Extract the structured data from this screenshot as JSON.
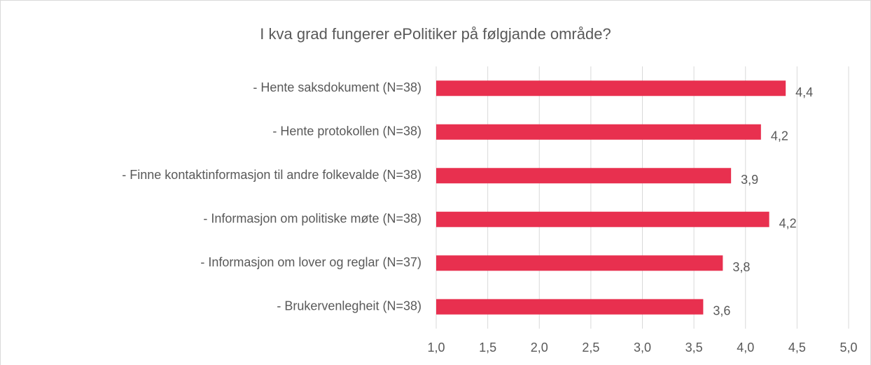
{
  "chart_data": {
    "type": "bar",
    "orientation": "horizontal",
    "title": "I kva grad fungerer ePolitiker på følgjande område?",
    "categories": [
      "- Hente saksdokument (N=38)",
      "- Hente protokollen (N=38)",
      "- Finne kontaktinformasjon til andre folkevalde (N=38)",
      "- Informasjon om politiske møte (N=38)",
      "- Informasjon om lover og reglar (N=37)",
      "- Brukervenlegheit (N=38)"
    ],
    "values": [
      4.39,
      4.15,
      3.86,
      4.23,
      3.78,
      3.59
    ],
    "value_labels": [
      "4,4",
      "4,2",
      "3,9",
      "4,2",
      "3,8",
      "3,6"
    ],
    "color": "#e8304f",
    "xlim": [
      1,
      5
    ],
    "xticks": [
      {
        "value": 1,
        "label": "1,0"
      },
      {
        "value": 1.5,
        "label": "1,5"
      },
      {
        "value": 2,
        "label": "2,0"
      },
      {
        "value": 2.5,
        "label": "2,5"
      },
      {
        "value": 3,
        "label": "3,0"
      },
      {
        "value": 3.5,
        "label": "3,5"
      },
      {
        "value": 4,
        "label": "4,0"
      },
      {
        "value": 4.5,
        "label": "4,5"
      },
      {
        "value": 5,
        "label": "5,0"
      }
    ],
    "grid": true
  }
}
